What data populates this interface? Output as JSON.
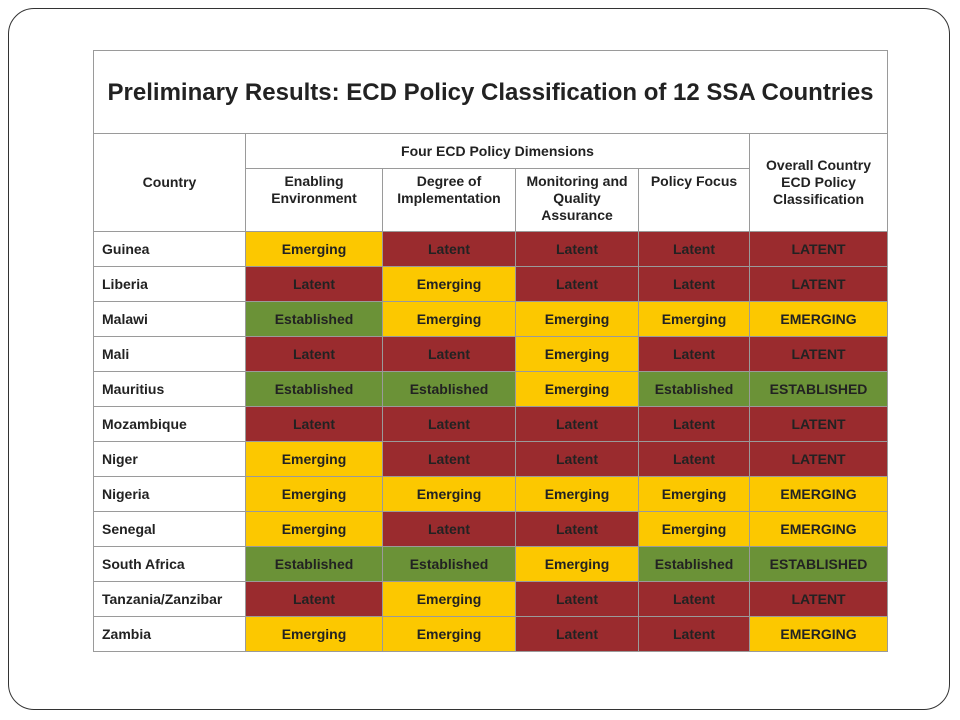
{
  "title": "Preliminary Results: ECD Policy Classification of 12 SSA Countries",
  "table": {
    "header": {
      "country": "Country",
      "group": "Four ECD Policy Dimensions",
      "dimensions": [
        "Enabling Environment",
        "Degree of Implementation",
        "Monitoring and Quality Assurance",
        "Policy Focus"
      ],
      "overall": "Overall Country ECD Policy Classification"
    },
    "rows": [
      [
        "Guinea",
        "Emerging",
        "Latent",
        "Latent",
        "Latent",
        "LATENT"
      ],
      [
        "Liberia",
        "Latent",
        "Emerging",
        "Latent",
        "Latent",
        "LATENT"
      ],
      [
        "Malawi",
        "Established",
        "Emerging",
        "Emerging",
        "Emerging",
        "EMERGING"
      ],
      [
        "Mali",
        "Latent",
        "Latent",
        "Emerging",
        "Latent",
        "LATENT"
      ],
      [
        "Mauritius",
        "Established",
        "Established",
        "Emerging",
        "Established",
        "ESTABLISHED"
      ],
      [
        "Mozambique",
        "Latent",
        "Latent",
        "Latent",
        "Latent",
        "LATENT"
      ],
      [
        "Niger",
        "Emerging",
        "Latent",
        "Latent",
        "Latent",
        "LATENT"
      ],
      [
        "Nigeria",
        "Emerging",
        "Emerging",
        "Emerging",
        "Emerging",
        "EMERGING"
      ],
      [
        "Senegal",
        "Emerging",
        "Latent",
        "Latent",
        "Emerging",
        "EMERGING"
      ],
      [
        "South Africa",
        "Established",
        "Established",
        "Emerging",
        "Established",
        "ESTABLISHED"
      ],
      [
        "Tanzania/Zanzibar",
        "Latent",
        "Emerging",
        "Latent",
        "Latent",
        "LATENT"
      ],
      [
        "Zambia",
        "Emerging",
        "Emerging",
        "Latent",
        "Latent",
        "EMERGING"
      ]
    ]
  },
  "colors": {
    "Latent": "#9a2b2e",
    "Emerging": "#fcc800",
    "Established": "#6b9237"
  }
}
